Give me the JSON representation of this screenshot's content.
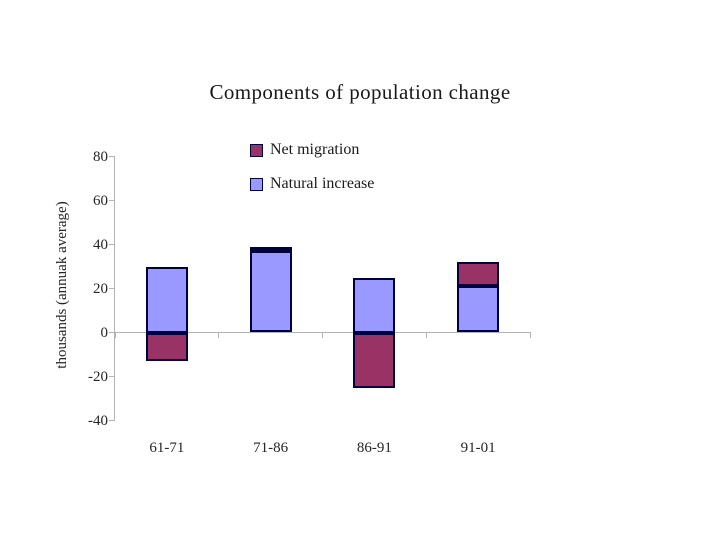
{
  "slide": {
    "background": "#ffffff"
  },
  "chart_data": {
    "type": "bar",
    "stacked": true,
    "title": "Components of population change",
    "ylabel": "thousands (annuak average)",
    "xlabel": "",
    "categories": [
      "61-71",
      "71-86",
      "86-91",
      "91-01"
    ],
    "series": [
      {
        "name": "Net migration",
        "color": "#993366",
        "values": [
          -13,
          2,
          -25,
          11
        ]
      },
      {
        "name": "Natural increase",
        "color": "#9999FF",
        "values": [
          30,
          37,
          25,
          21
        ]
      }
    ],
    "ylim": [
      -40,
      80
    ],
    "ytick_step": 20,
    "yticks": [
      80,
      60,
      40,
      20,
      0,
      -20,
      -40
    ],
    "grid": false,
    "legend_position": "top-center",
    "colors": {
      "net_migration": "#993366",
      "natural_increase": "#9999FF",
      "bar_border": "#000040",
      "axis_line": "#b3b3b3",
      "text": "#262626"
    }
  }
}
